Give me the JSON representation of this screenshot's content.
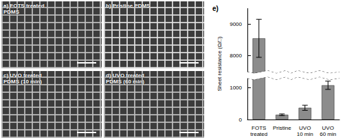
{
  "panels": [
    {
      "label": "a)",
      "title": "FOTS treated PDMS"
    },
    {
      "label": "b)",
      "title": "Pristine PDMS"
    },
    {
      "label": "c)",
      "title": "UVO treated PDMS (10 min)"
    },
    {
      "label": "d)",
      "title": "UVO treated PDMS (60 min)"
    }
  ],
  "chart_data": {
    "type": "bar",
    "title": "e)",
    "y_label": "Sheet resistance (Ω/□)",
    "categories": [
      "FOTS treated",
      "Pristine",
      "UVO 10 min",
      "UVO 60 min"
    ],
    "values": [
      8550,
      150,
      370,
      1080
    ],
    "errors": [
      600,
      25,
      80,
      130
    ],
    "color": "#8c8c8c",
    "ylim": [
      0,
      9500
    ],
    "yticks": [
      0,
      1000,
      8000,
      9000
    ],
    "y_break": [
      1300,
      7500
    ],
    "grid": false
  }
}
